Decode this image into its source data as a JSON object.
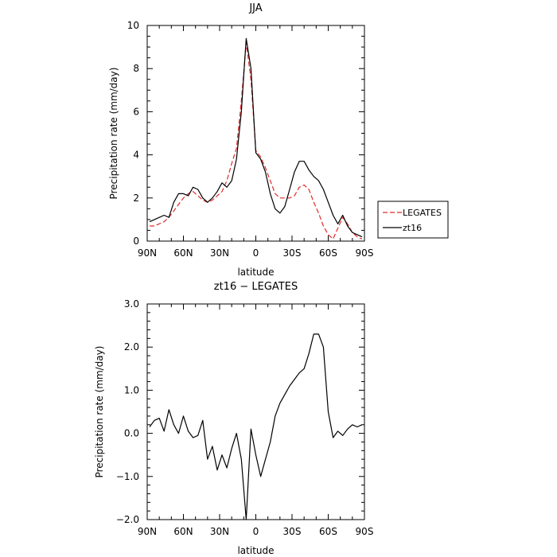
{
  "chart_data": [
    {
      "type": "line",
      "title": "JJA",
      "xlabel": "latitude",
      "ylabel": "Precipitation rate (mm/day)",
      "xlim": [
        90,
        -90
      ],
      "ylim": [
        0,
        10
      ],
      "x_tick_values": [
        90,
        60,
        30,
        0,
        -30,
        -60,
        -90
      ],
      "x_tick_labels": [
        "90N",
        "60N",
        "30N",
        "0",
        "30S",
        "60S",
        "90S"
      ],
      "y_tick_values": [
        0,
        2,
        4,
        6,
        8,
        10
      ],
      "y_tick_labels": [
        "0",
        "2",
        "4",
        "6",
        "8",
        "10"
      ],
      "legend": {
        "position": "right",
        "entries": [
          "LEGATES",
          "zt16"
        ]
      },
      "series": [
        {
          "name": "LEGATES",
          "color": "#e32a2a",
          "dash": "dashed",
          "x": [
            88,
            84,
            80,
            76,
            72,
            68,
            64,
            60,
            56,
            52,
            48,
            44,
            40,
            36,
            32,
            28,
            24,
            20,
            16,
            12,
            8,
            4,
            0,
            -4,
            -8,
            -12,
            -16,
            -20,
            -24,
            -28,
            -32,
            -36,
            -40,
            -44,
            -48,
            -52,
            -56,
            -60,
            -64,
            -68,
            -72,
            -76,
            -80,
            -84,
            -88
          ],
          "values": [
            0.7,
            0.7,
            0.8,
            0.9,
            1.1,
            1.4,
            1.7,
            2.0,
            2.2,
            2.3,
            2.1,
            1.9,
            1.8,
            1.9,
            2.1,
            2.3,
            2.8,
            3.6,
            4.3,
            6.5,
            9.2,
            7.5,
            4.2,
            3.9,
            3.4,
            2.8,
            2.2,
            2.0,
            2.0,
            2.0,
            2.1,
            2.5,
            2.6,
            2.4,
            1.8,
            1.3,
            0.7,
            0.3,
            0.1,
            0.6,
            1.1,
            0.8,
            0.4,
            0.2,
            0.1
          ]
        },
        {
          "name": "zt16",
          "color": "#000000",
          "dash": "solid",
          "x": [
            88,
            84,
            80,
            76,
            72,
            68,
            64,
            60,
            56,
            52,
            48,
            44,
            40,
            36,
            32,
            28,
            24,
            20,
            16,
            12,
            8,
            4,
            0,
            -4,
            -8,
            -12,
            -16,
            -20,
            -24,
            -28,
            -32,
            -36,
            -40,
            -44,
            -48,
            -52,
            -56,
            -60,
            -64,
            -68,
            -72,
            -76,
            -80,
            -84,
            -88
          ],
          "values": [
            0.9,
            1.0,
            1.1,
            1.2,
            1.1,
            1.8,
            2.2,
            2.2,
            2.1,
            2.5,
            2.4,
            2.0,
            1.8,
            2.0,
            2.3,
            2.7,
            2.5,
            2.8,
            3.8,
            6.0,
            9.4,
            8.0,
            4.1,
            3.8,
            3.2,
            2.2,
            1.5,
            1.3,
            1.6,
            2.4,
            3.2,
            3.7,
            3.7,
            3.3,
            3.0,
            2.8,
            2.4,
            1.8,
            1.2,
            0.8,
            1.2,
            0.7,
            0.4,
            0.3,
            0.2
          ]
        }
      ]
    },
    {
      "type": "line",
      "title": "zt16 − LEGATES",
      "xlabel": "latitude",
      "ylabel": "Precipitation rate (mm/day)",
      "xlim": [
        90,
        -90
      ],
      "ylim": [
        -2,
        3
      ],
      "x_tick_values": [
        90,
        60,
        30,
        0,
        -30,
        -60,
        -90
      ],
      "x_tick_labels": [
        "90N",
        "60N",
        "30N",
        "0",
        "30S",
        "60S",
        "90S"
      ],
      "y_tick_values": [
        -2,
        -1,
        0,
        1,
        2,
        3
      ],
      "y_tick_labels": [
        "−2.0",
        "−1.0",
        "0.0",
        "1.0",
        "2.0",
        "3.0"
      ],
      "series": [
        {
          "color": "#000000",
          "dash": "solid",
          "x": [
            88,
            84,
            80,
            76,
            72,
            68,
            64,
            60,
            56,
            52,
            48,
            44,
            40,
            36,
            32,
            28,
            24,
            20,
            16,
            12,
            8,
            4,
            0,
            -4,
            -8,
            -12,
            -16,
            -20,
            -24,
            -28,
            -32,
            -36,
            -40,
            -44,
            -48,
            -52,
            -56,
            -60,
            -64,
            -68,
            -72,
            -76,
            -80,
            -84,
            -88
          ],
          "values": [
            0.15,
            0.3,
            0.35,
            0.05,
            0.55,
            0.2,
            0.0,
            0.4,
            0.05,
            -0.1,
            -0.05,
            0.3,
            -0.6,
            -0.3,
            -0.85,
            -0.5,
            -0.8,
            -0.35,
            0.0,
            -0.6,
            -2.0,
            0.1,
            -0.5,
            -1.0,
            -0.6,
            -0.2,
            0.4,
            0.7,
            0.9,
            1.1,
            1.25,
            1.4,
            1.5,
            1.85,
            2.3,
            2.3,
            2.0,
            0.5,
            -0.1,
            0.05,
            -0.05,
            0.1,
            0.2,
            0.15,
            0.2
          ]
        }
      ]
    }
  ]
}
